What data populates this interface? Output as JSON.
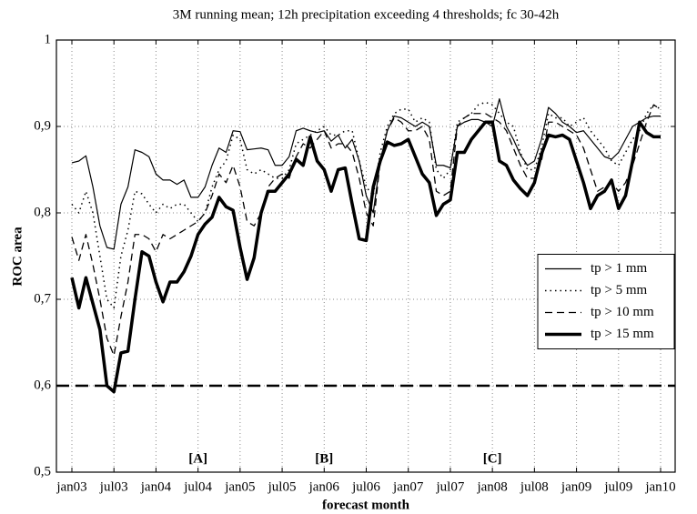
{
  "chart_data": {
    "type": "line",
    "title": "3M running mean; 12h precipitation exceeding 4 thresholds; fc 30-42h",
    "x_label": "forecast month",
    "y_label": "ROC area",
    "categories": [
      "jan03",
      null,
      null,
      null,
      null,
      null,
      "jul03",
      null,
      null,
      null,
      null,
      null,
      "jan04",
      null,
      null,
      null,
      null,
      null,
      "jul04",
      null,
      null,
      null,
      null,
      null,
      "jan05",
      null,
      null,
      null,
      null,
      null,
      "jul05",
      null,
      null,
      null,
      null,
      null,
      "jan06",
      null,
      null,
      null,
      null,
      null,
      "jul06",
      null,
      null,
      null,
      null,
      null,
      "jan07",
      null,
      null,
      null,
      null,
      null,
      "jul07",
      null,
      null,
      null,
      null,
      null,
      "jan08",
      null,
      null,
      null,
      null,
      null,
      "jul08",
      null,
      null,
      null,
      null,
      null,
      "jan09",
      null,
      null,
      null,
      null,
      null,
      "jul09",
      null,
      null,
      null,
      null,
      null,
      "jan10"
    ],
    "ylim": [
      0.5,
      1
    ],
    "yticks": [
      {
        "value": 0.5,
        "label": "0,5"
      },
      {
        "value": 0.6,
        "label": "0,6"
      },
      {
        "value": 0.7,
        "label": "0,7"
      },
      {
        "value": 0.8,
        "label": "0,8"
      },
      {
        "value": 0.9,
        "label": "0,9"
      },
      1
    ],
    "grid": true,
    "legend": "center right",
    "hline": {
      "value": 0.6,
      "color": "#000000",
      "linestyle": "dashed"
    },
    "annotations": [
      {
        "text": "[A]",
        "x": "jul04"
      },
      {
        "text": "[B]",
        "x": "jan06"
      },
      {
        "text": "[C]",
        "x": "jan08"
      }
    ],
    "series": [
      {
        "name": "tp > 1 mm",
        "color": "#000000",
        "linestyle": "solid",
        "linewidth": 1.2,
        "values": [
          0.858,
          0.86,
          0.866,
          0.83,
          0.785,
          0.76,
          0.758,
          0.81,
          0.83,
          0.873,
          0.87,
          0.865,
          0.845,
          0.838,
          0.838,
          0.833,
          0.838,
          0.818,
          0.818,
          0.83,
          0.855,
          0.875,
          0.87,
          0.895,
          0.894,
          0.873,
          0.874,
          0.875,
          0.873,
          0.855,
          0.855,
          0.865,
          0.895,
          0.898,
          0.895,
          0.893,
          0.895,
          0.883,
          0.89,
          0.875,
          0.885,
          0.86,
          0.82,
          0.8,
          0.86,
          0.895,
          0.912,
          0.91,
          0.905,
          0.9,
          0.905,
          0.9,
          0.855,
          0.855,
          0.852,
          0.9,
          0.905,
          0.908,
          0.908,
          0.905,
          0.9,
          0.932,
          0.9,
          0.885,
          0.867,
          0.855,
          0.86,
          0.885,
          0.922,
          0.915,
          0.905,
          0.9,
          0.893,
          0.895,
          0.885,
          0.875,
          0.865,
          0.862,
          0.87,
          0.885,
          0.9,
          0.905,
          0.91,
          0.912,
          0.912
        ]
      },
      {
        "name": "tp > 5 mm",
        "color": "#000000",
        "linestyle": "dotted",
        "linewidth": 1.5,
        "values": [
          0.81,
          0.8,
          0.825,
          0.8,
          0.75,
          0.7,
          0.69,
          0.75,
          0.78,
          0.825,
          0.822,
          0.81,
          0.8,
          0.81,
          0.805,
          0.81,
          0.81,
          0.8,
          0.79,
          0.8,
          0.83,
          0.85,
          0.86,
          0.89,
          0.885,
          0.85,
          0.845,
          0.85,
          0.845,
          0.84,
          0.84,
          0.85,
          0.88,
          0.885,
          0.89,
          0.895,
          0.9,
          0.89,
          0.89,
          0.895,
          0.895,
          0.86,
          0.83,
          0.82,
          0.87,
          0.9,
          0.915,
          0.92,
          0.92,
          0.905,
          0.91,
          0.905,
          0.85,
          0.84,
          0.85,
          0.905,
          0.91,
          0.915,
          0.925,
          0.928,
          0.925,
          0.915,
          0.905,
          0.9,
          0.87,
          0.85,
          0.85,
          0.875,
          0.915,
          0.91,
          0.91,
          0.9,
          0.905,
          0.91,
          0.895,
          0.885,
          0.875,
          0.86,
          0.855,
          0.87,
          0.885,
          0.895,
          0.915,
          0.925,
          0.92
        ]
      },
      {
        "name": "tp > 10 mm",
        "color": "#000000",
        "linestyle": "dashed",
        "linewidth": 1.3,
        "values": [
          0.772,
          0.745,
          0.775,
          0.74,
          0.7,
          0.655,
          0.635,
          0.68,
          0.72,
          0.775,
          0.775,
          0.77,
          0.755,
          0.775,
          0.77,
          0.775,
          0.78,
          0.785,
          0.79,
          0.8,
          0.82,
          0.845,
          0.835,
          0.855,
          0.83,
          0.79,
          0.785,
          0.8,
          0.83,
          0.84,
          0.845,
          0.84,
          0.865,
          0.88,
          0.875,
          0.885,
          0.895,
          0.875,
          0.88,
          0.88,
          0.87,
          0.84,
          0.8,
          0.785,
          0.86,
          0.895,
          0.91,
          0.905,
          0.895,
          0.895,
          0.9,
          0.885,
          0.825,
          0.82,
          0.825,
          0.9,
          0.91,
          0.915,
          0.915,
          0.915,
          0.91,
          0.905,
          0.895,
          0.875,
          0.855,
          0.84,
          0.84,
          0.86,
          0.905,
          0.905,
          0.9,
          0.895,
          0.89,
          0.875,
          0.85,
          0.825,
          0.83,
          0.835,
          0.825,
          0.835,
          0.855,
          0.88,
          0.905,
          0.925,
          0.92
        ]
      },
      {
        "name": "tp > 15 mm",
        "color": "#000000",
        "linestyle": "solid",
        "linewidth": 3.5,
        "values": [
          0.725,
          0.69,
          0.725,
          0.695,
          0.665,
          0.6,
          0.593,
          0.638,
          0.64,
          0.7,
          0.755,
          0.75,
          0.72,
          0.697,
          0.72,
          0.72,
          0.732,
          0.75,
          0.775,
          0.787,
          0.795,
          0.818,
          0.807,
          0.803,
          0.76,
          0.723,
          0.748,
          0.8,
          0.825,
          0.825,
          0.835,
          0.845,
          0.862,
          0.855,
          0.888,
          0.86,
          0.85,
          0.825,
          0.85,
          0.852,
          0.81,
          0.77,
          0.768,
          0.83,
          0.86,
          0.882,
          0.878,
          0.88,
          0.885,
          0.865,
          0.845,
          0.835,
          0.797,
          0.81,
          0.815,
          0.87,
          0.87,
          0.885,
          0.895,
          0.905,
          0.905,
          0.86,
          0.855,
          0.838,
          0.828,
          0.82,
          0.835,
          0.868,
          0.89,
          0.888,
          0.89,
          0.885,
          0.86,
          0.835,
          0.805,
          0.82,
          0.825,
          0.838,
          0.805,
          0.82,
          0.86,
          0.905,
          0.893,
          0.888,
          0.888
        ]
      }
    ]
  }
}
